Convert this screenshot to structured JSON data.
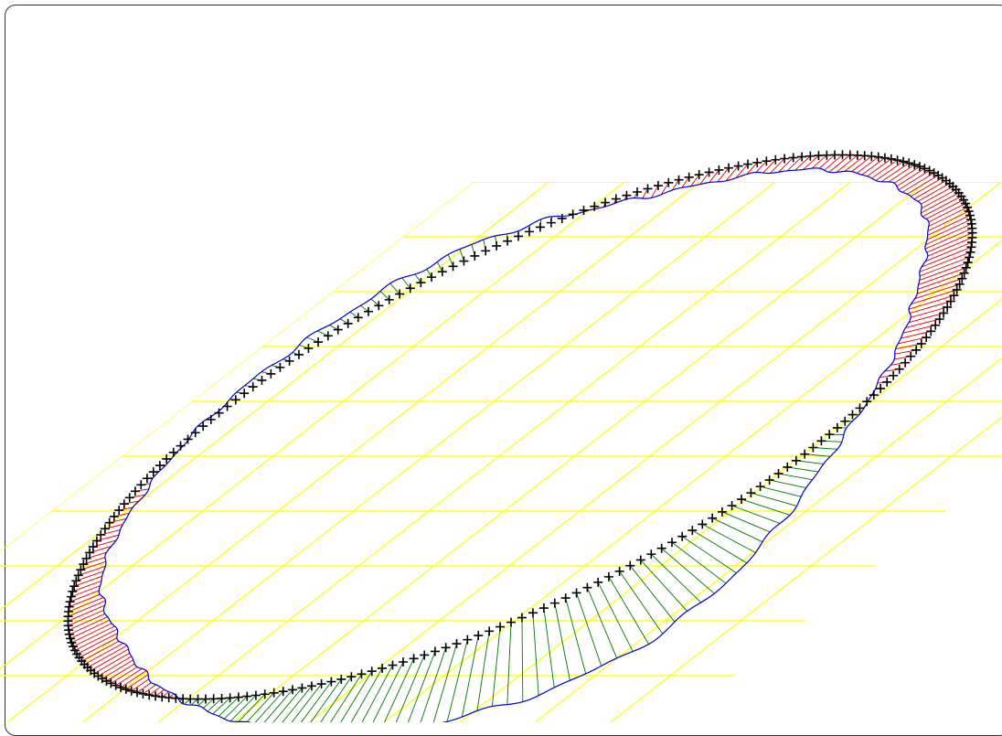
{
  "figure": {
    "kind": "roundness-deviation-diagram",
    "colors": {
      "grid": "#ffff00",
      "nominal_marker": "#000000",
      "measured_profile": "#0000cc",
      "deviation_inside": "#dd0000",
      "deviation_outside": "#007700",
      "frame": "#333333",
      "background": "#ffffff"
    },
    "grid": {
      "rows": 10,
      "columns": 10,
      "skewed": true
    },
    "nominal_markers": {
      "count": 260,
      "symbol": "+"
    },
    "deviation_hatch_count": 260,
    "profile": {
      "harmonics": [
        {
          "k": 1,
          "amplitude": -0.12,
          "phase": 1.16
        },
        {
          "k": 2,
          "amplitude": -0.19,
          "phase": -0.2
        },
        {
          "k": 3,
          "amplitude": 0.06,
          "phase": 0.8
        },
        {
          "k": 5,
          "amplitude": 0.015,
          "phase": 1.4
        },
        {
          "k": 9,
          "amplitude": 0.008,
          "phase": 0.3
        }
      ],
      "roughness": 0.008
    }
  }
}
